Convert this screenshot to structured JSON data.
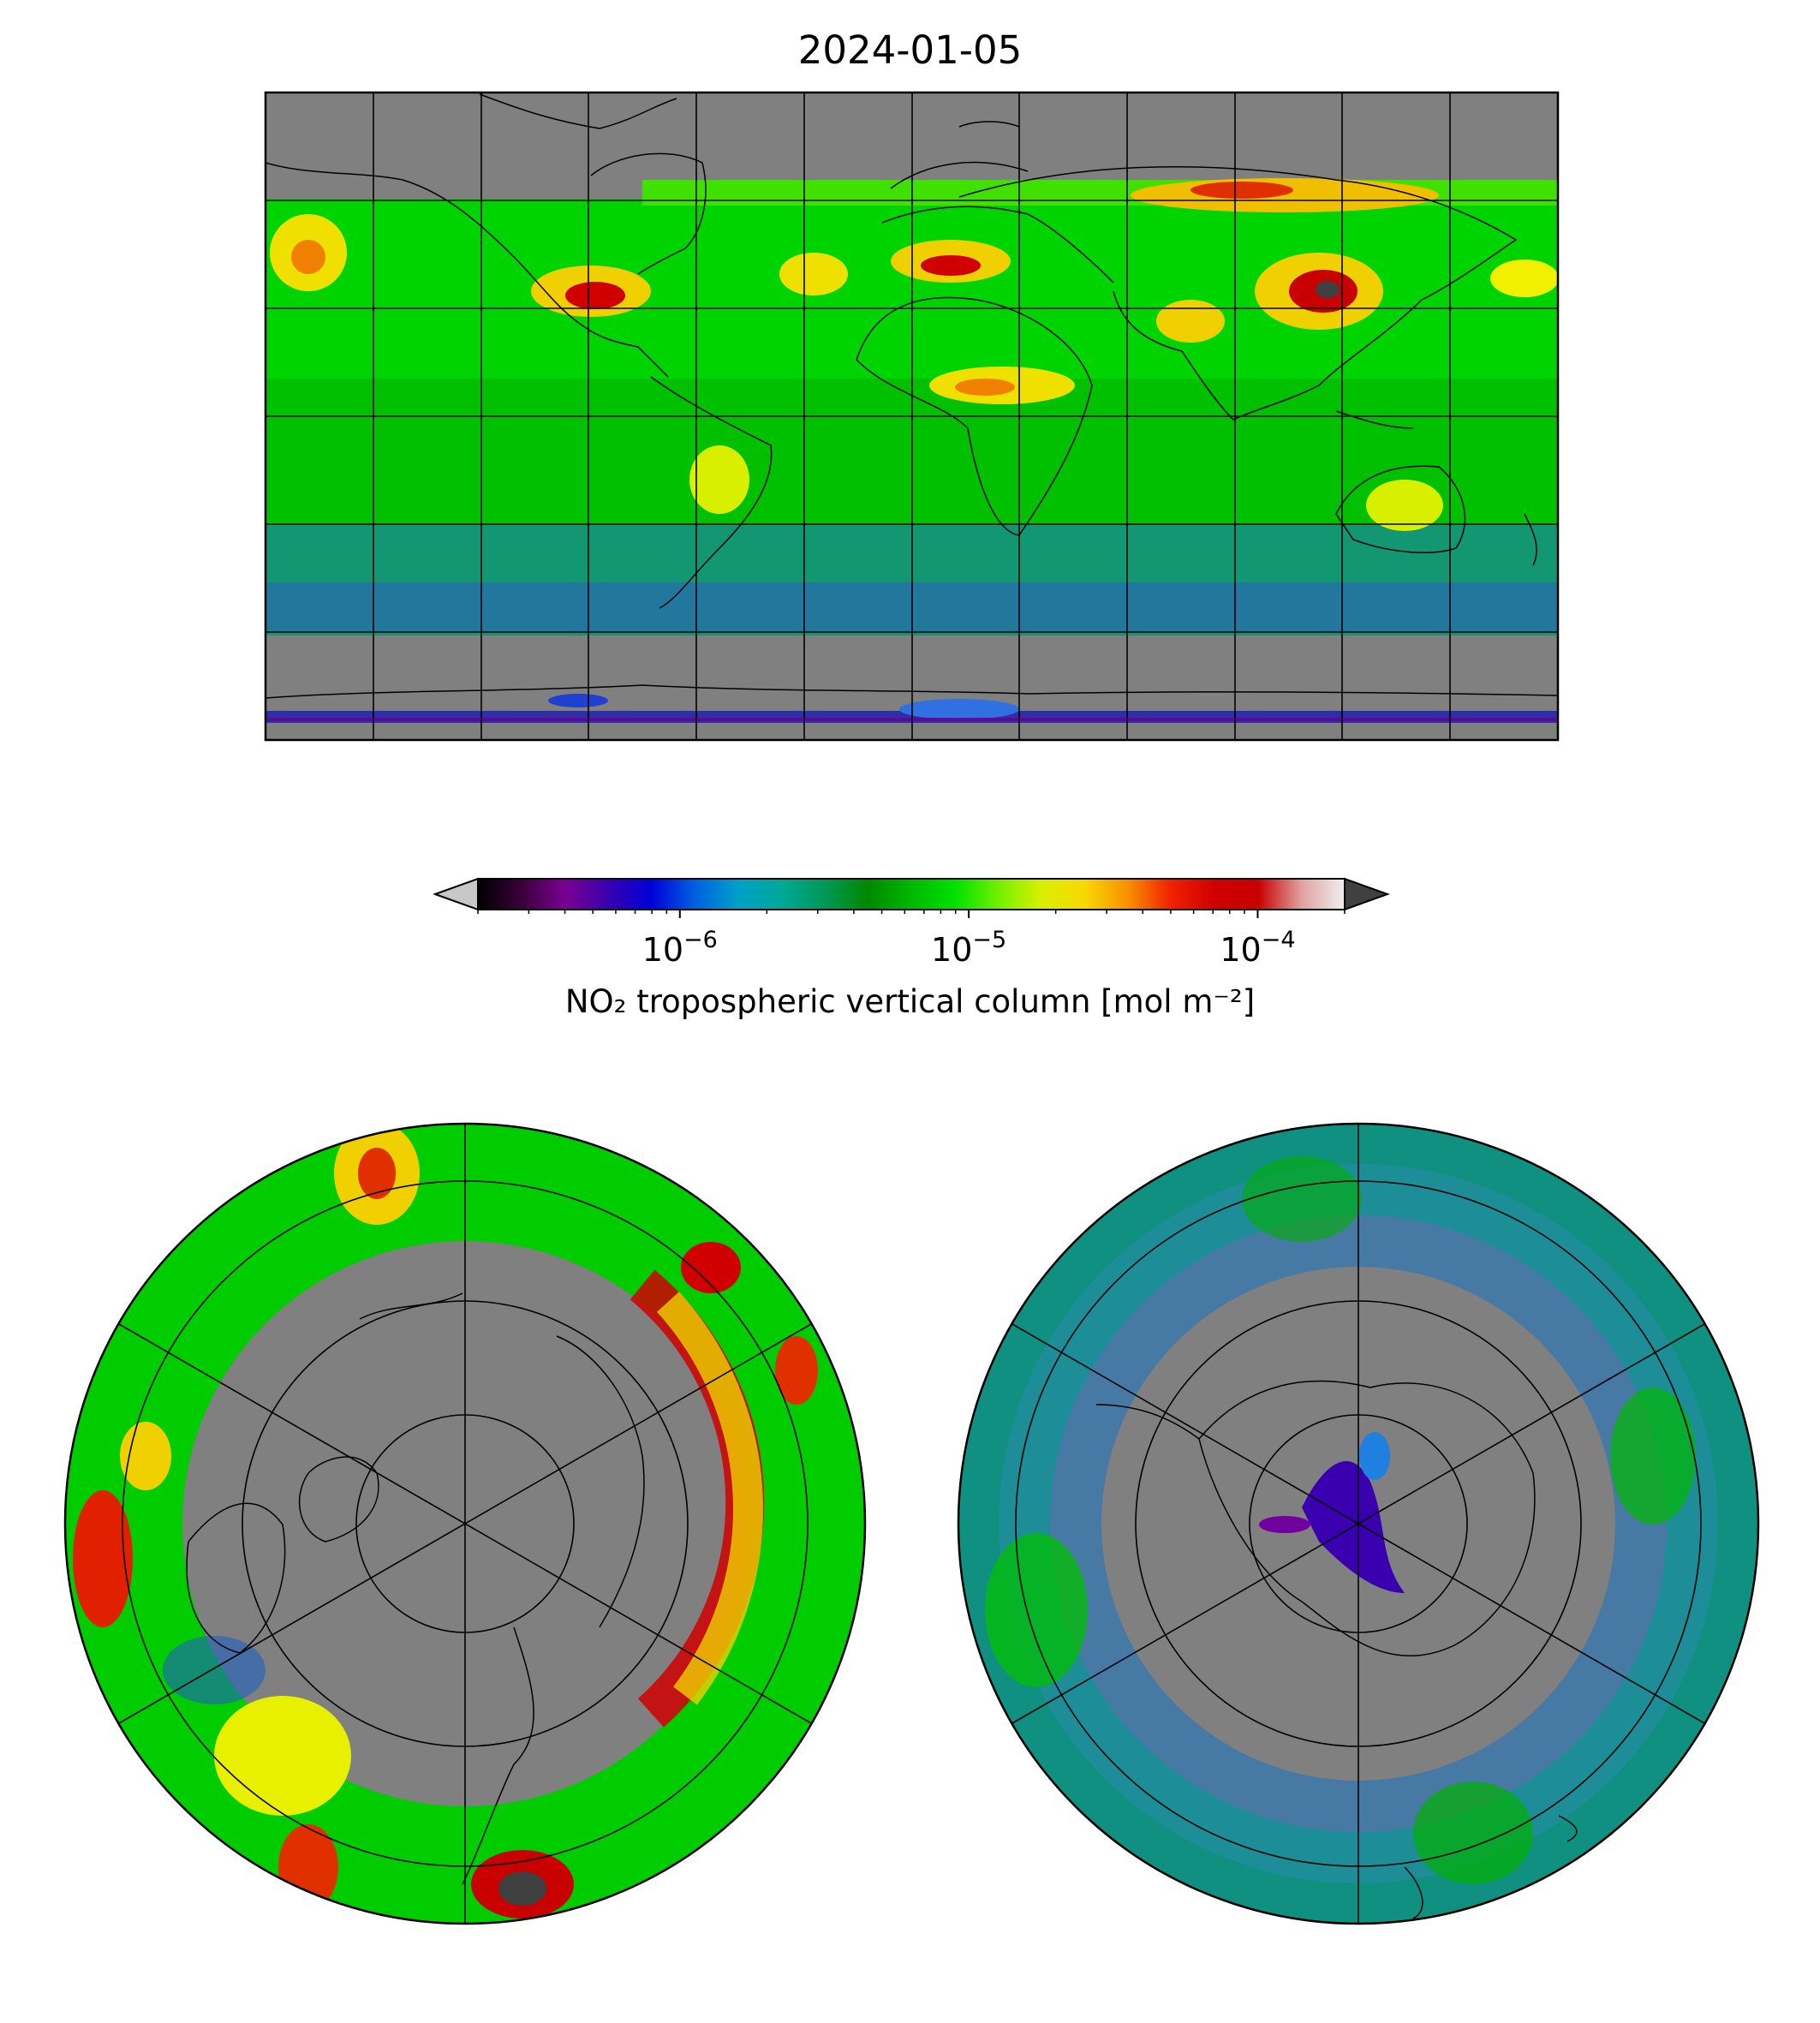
{
  "title": "2024-01-05",
  "colorbar": {
    "label": "NO₂ tropospheric vertical column [mol m⁻²]",
    "scale": "log",
    "range": [
      2e-07,
      0.0002
    ],
    "extend": "both",
    "ticks": [
      {
        "value": 1e-06,
        "base": "10",
        "exponent": "−6"
      },
      {
        "value": 1e-05,
        "base": "10",
        "exponent": "−5"
      },
      {
        "value": 0.0001,
        "base": "10",
        "exponent": "−4"
      }
    ],
    "colors": {
      "under": "#c8c8c8",
      "over": "#404040",
      "stops": [
        "#000000",
        "#3a003a",
        "#7a0090",
        "#3a00b0",
        "#0000d8",
        "#0060e0",
        "#00a0c8",
        "#00a898",
        "#009858",
        "#008800",
        "#00b800",
        "#00e000",
        "#70f000",
        "#d8f000",
        "#f8d800",
        "#f89000",
        "#f02000",
        "#d00000",
        "#c80000",
        "#e0a0a0",
        "#f0f0f0"
      ]
    }
  },
  "panels": {
    "global": {
      "projection": "plate-carree",
      "background": "#808080",
      "gridline_color": "#000000"
    },
    "north_pole": {
      "projection": "north-polar-stereographic",
      "background": "#808080"
    },
    "south_pole": {
      "projection": "south-polar-stereographic",
      "background": "#808080"
    }
  }
}
